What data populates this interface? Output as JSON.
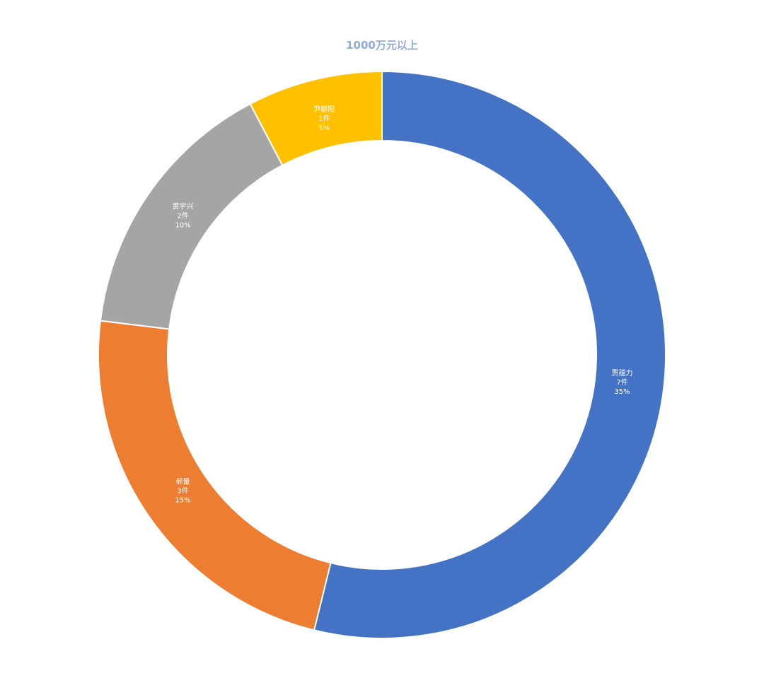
{
  "chart_data": {
    "type": "pie",
    "variant": "doughnut",
    "title": "1000万元以上",
    "start_angle_deg": 0,
    "direction": "clockwise",
    "legend": "none",
    "slices": [
      {
        "name": "贾蕴力",
        "count_label": "7件",
        "percent_label": "35%",
        "value": 7,
        "color": "#4472C4"
      },
      {
        "name": "郝量",
        "count_label": "3件",
        "percent_label": "15%",
        "value": 3,
        "color": "#ED7D31"
      },
      {
        "name": "黄宇兴",
        "count_label": "2件",
        "percent_label": "10%",
        "value": 2,
        "color": "#A5A5A5"
      },
      {
        "name": "尹朝阳",
        "count_label": "1件",
        "percent_label": "5%",
        "value": 1,
        "color": "#FFC000"
      }
    ]
  }
}
